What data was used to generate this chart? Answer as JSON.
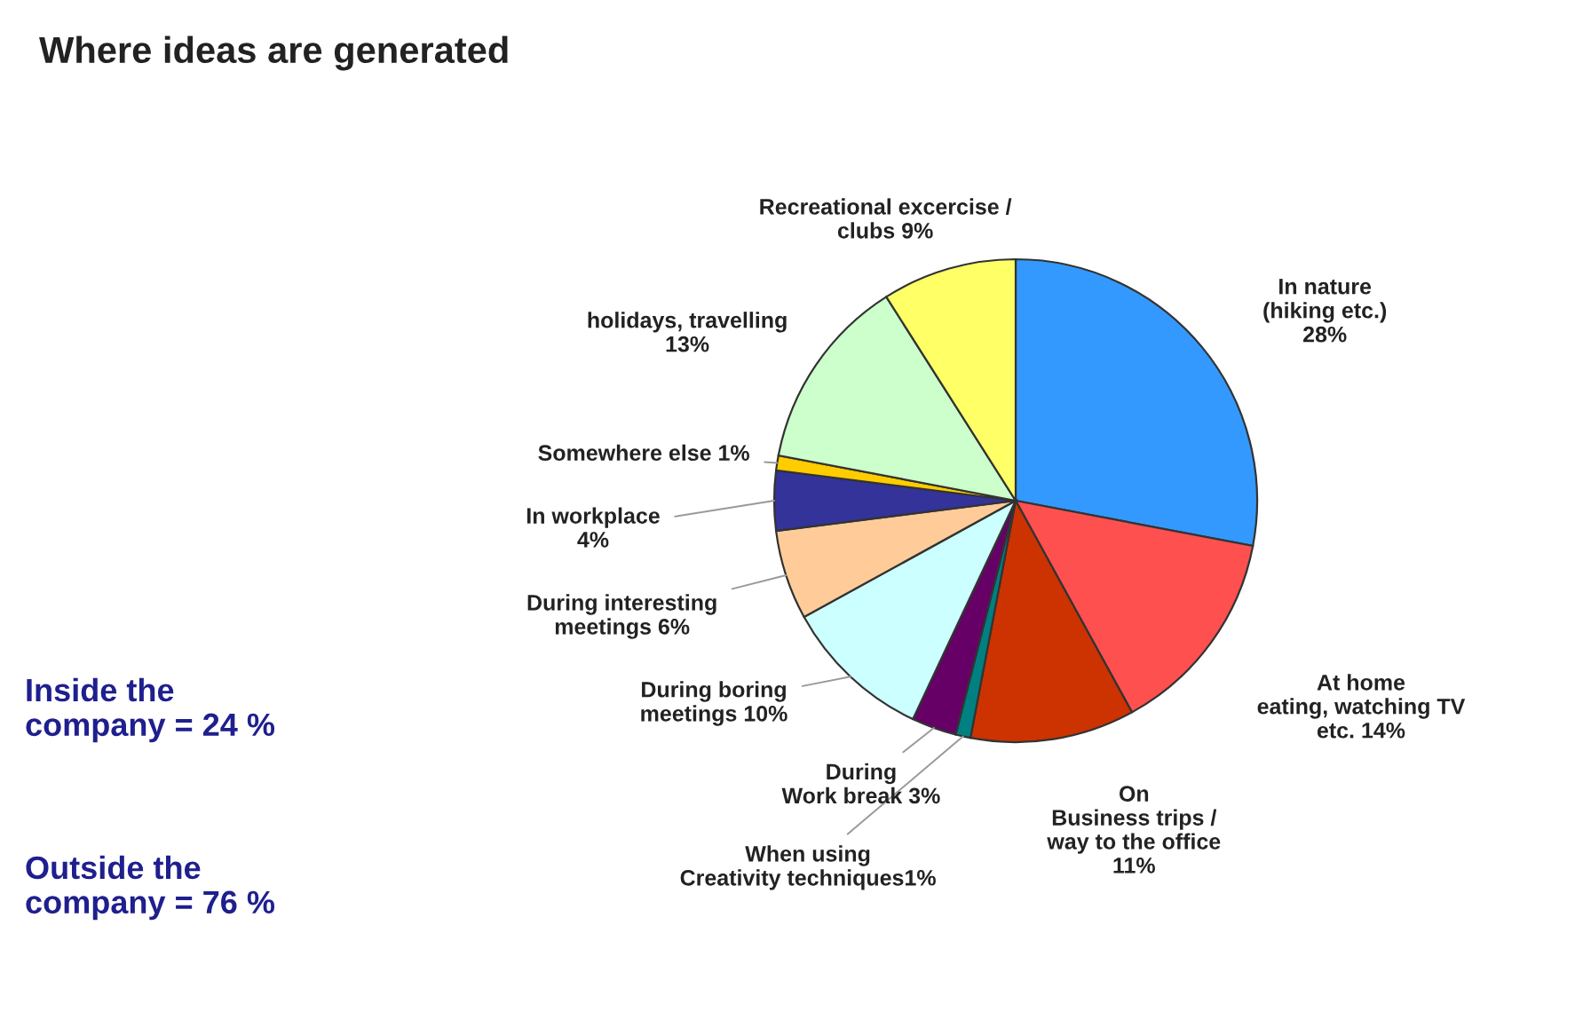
{
  "chart_data": {
    "type": "pie",
    "title": "Where ideas are generated",
    "categories": [
      "In nature\n(hiking etc.)\n",
      "At home\neating, watching TV\netc. ",
      "On\nBusiness trips /\nway to the office\n",
      "When using\nCreativity techniques",
      "During\nWork break ",
      "During boring\nmeetings ",
      "During interesting\nmeetings ",
      "In workplace\n",
      "Somewhere else ",
      "holidays, travelling\n",
      "Recreational excercise /\nclubs "
    ],
    "values": [
      28,
      14,
      11,
      1,
      3,
      10,
      6,
      4,
      1,
      13,
      9
    ],
    "value_labels": [
      "28%",
      "14%",
      "11%",
      "1%",
      "3%",
      "10%",
      "6%",
      "4%",
      "1%",
      "13%",
      "9%"
    ],
    "colors": [
      "#3399ff",
      "#ff5050",
      "#cc3300",
      "#008080",
      "#660066",
      "#ccffff",
      "#ffcc99",
      "#333399",
      "#ffcc00",
      "#ccffcc",
      "#ffff66"
    ],
    "annotations": [
      "Inside the\ncompany = 24 %",
      "Outside the\ncompany = 76 %"
    ]
  }
}
